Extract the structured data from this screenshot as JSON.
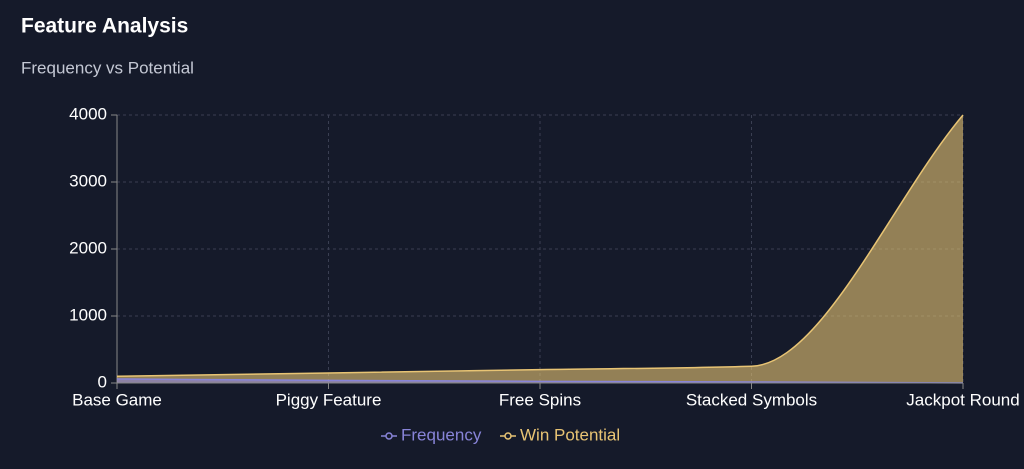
{
  "header": {
    "title": "Feature Analysis",
    "subtitle": "Frequency vs Potential"
  },
  "chart_data": {
    "type": "area",
    "categories": [
      "Base Game",
      "Piggy Feature",
      "Free Spins",
      "Stacked Symbols",
      "Jackpot Round"
    ],
    "series": [
      {
        "name": "Frequency",
        "color": "#8884d8",
        "values": [
          60,
          40,
          25,
          15,
          1
        ]
      },
      {
        "name": "Win Potential",
        "color": "#e8c474",
        "values": [
          100,
          150,
          200,
          250,
          4000
        ]
      }
    ],
    "ylim": [
      0,
      4000
    ],
    "yticks": [
      0,
      1000,
      2000,
      3000,
      4000
    ],
    "grid": true,
    "legend": "bottom"
  }
}
